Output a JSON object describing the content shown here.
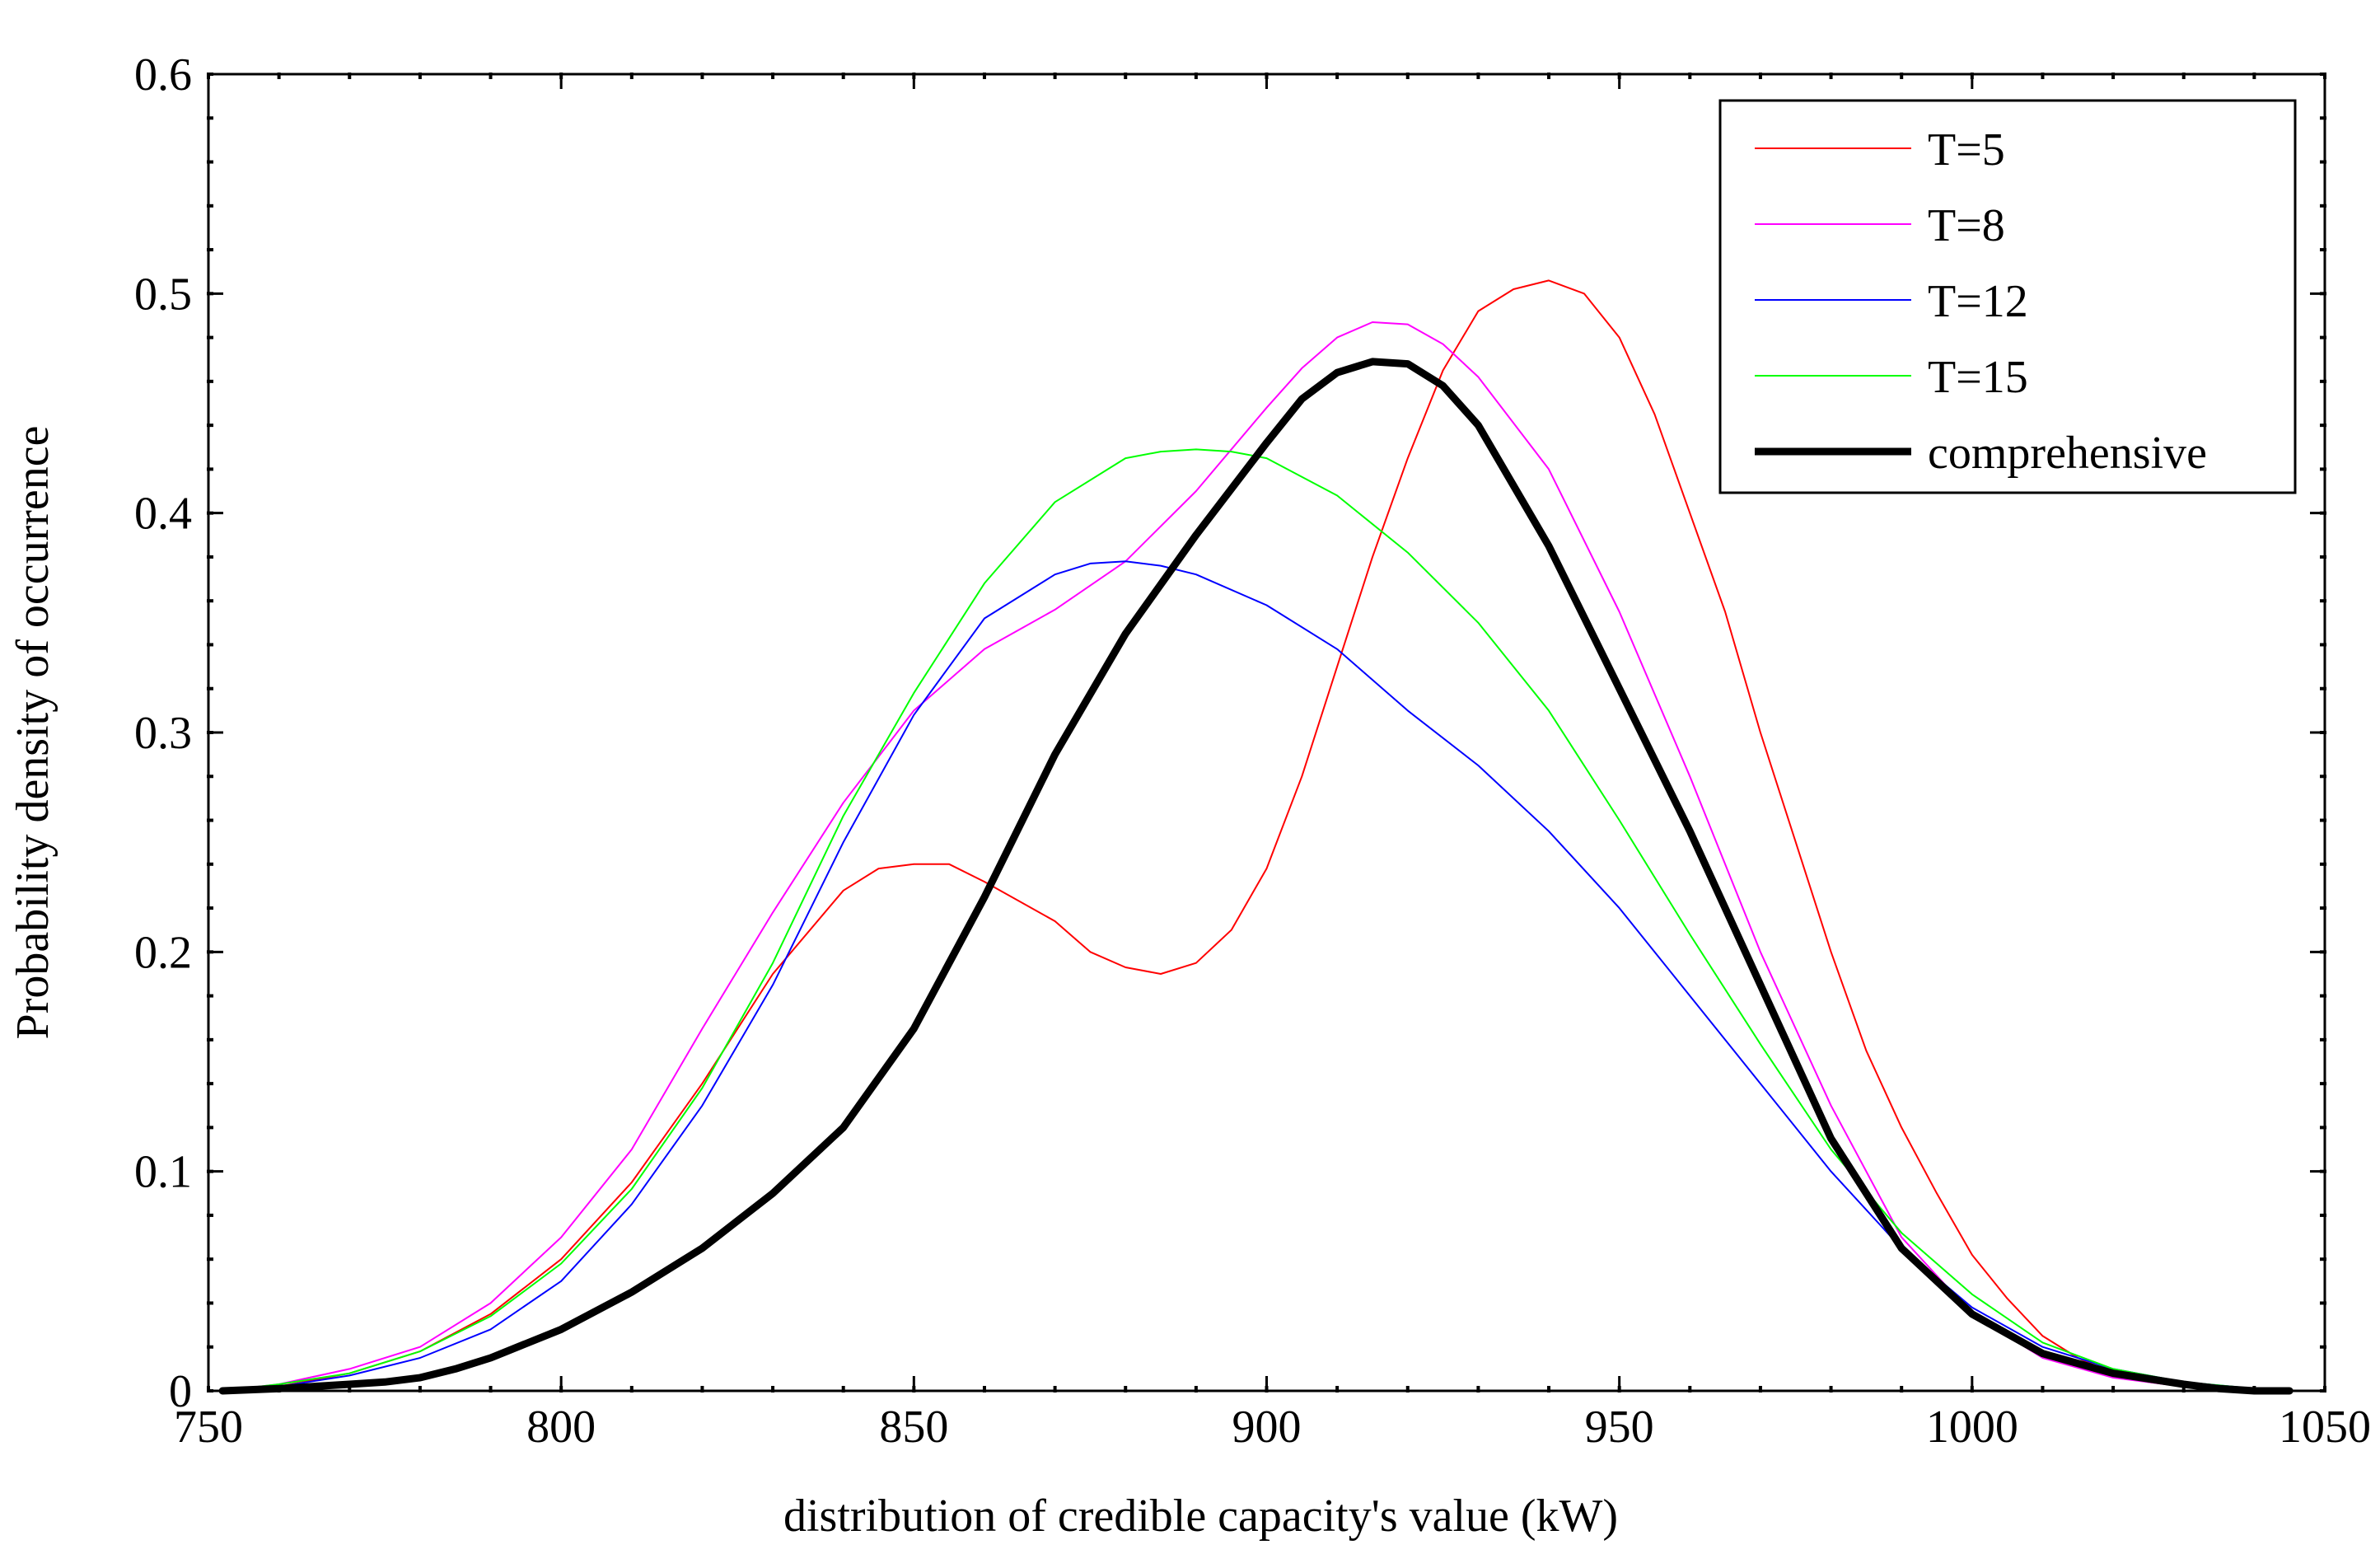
{
  "chart_data": {
    "type": "line",
    "title": "",
    "xlabel": "distribution of credible capacity's value  (kW)",
    "ylabel": "Probability density of occurrence",
    "xlim": [
      750,
      1050
    ],
    "ylim": [
      0,
      0.6
    ],
    "xticks": [
      "750",
      "800",
      "850",
      "900",
      "950",
      "1000",
      "1050"
    ],
    "yticks": [
      "0",
      "0.1",
      "0.2",
      "0.3",
      "0.4",
      "0.5",
      "0.6"
    ],
    "legend_position": "top-right",
    "series": [
      {
        "name": "T=5",
        "color": "#ff0000",
        "width": "thin",
        "x": [
          752,
          760,
          770,
          780,
          790,
          800,
          810,
          820,
          830,
          840,
          845,
          850,
          855,
          860,
          870,
          875,
          880,
          885,
          890,
          895,
          900,
          905,
          910,
          915,
          920,
          925,
          930,
          935,
          940,
          945,
          950,
          955,
          960,
          965,
          970,
          975,
          980,
          985,
          990,
          995,
          1000,
          1005,
          1010,
          1015,
          1020,
          1025,
          1030,
          1035,
          1040,
          1045
        ],
        "y": [
          0,
          0.002,
          0.008,
          0.018,
          0.035,
          0.06,
          0.095,
          0.14,
          0.19,
          0.228,
          0.238,
          0.24,
          0.24,
          0.232,
          0.214,
          0.2,
          0.193,
          0.19,
          0.195,
          0.21,
          0.238,
          0.28,
          0.33,
          0.38,
          0.425,
          0.465,
          0.492,
          0.502,
          0.506,
          0.5,
          0.48,
          0.445,
          0.4,
          0.355,
          0.3,
          0.25,
          0.2,
          0.155,
          0.12,
          0.09,
          0.062,
          0.042,
          0.025,
          0.015,
          0.008,
          0.004,
          0.002,
          0.001,
          0,
          0
        ]
      },
      {
        "name": "T=8",
        "color": "#ff00ff",
        "width": "thin",
        "x": [
          752,
          760,
          770,
          780,
          790,
          800,
          810,
          820,
          830,
          840,
          850,
          860,
          870,
          880,
          890,
          900,
          905,
          910,
          915,
          920,
          925,
          930,
          940,
          950,
          960,
          970,
          980,
          990,
          1000,
          1010,
          1020,
          1030,
          1040,
          1045
        ],
        "y": [
          0,
          0.003,
          0.01,
          0.02,
          0.04,
          0.07,
          0.11,
          0.165,
          0.218,
          0.268,
          0.31,
          0.338,
          0.356,
          0.378,
          0.41,
          0.448,
          0.466,
          0.48,
          0.487,
          0.486,
          0.477,
          0.462,
          0.42,
          0.355,
          0.28,
          0.2,
          0.13,
          0.07,
          0.035,
          0.015,
          0.006,
          0.002,
          0,
          0
        ]
      },
      {
        "name": "T=12",
        "color": "#0000ff",
        "width": "thin",
        "x": [
          752,
          760,
          770,
          780,
          790,
          800,
          810,
          820,
          830,
          840,
          850,
          860,
          870,
          875,
          880,
          885,
          890,
          900,
          910,
          920,
          930,
          940,
          950,
          960,
          970,
          980,
          990,
          1000,
          1010,
          1020,
          1030,
          1040,
          1045
        ],
        "y": [
          0,
          0.002,
          0.007,
          0.015,
          0.028,
          0.05,
          0.085,
          0.13,
          0.185,
          0.25,
          0.308,
          0.352,
          0.372,
          0.377,
          0.378,
          0.376,
          0.372,
          0.358,
          0.338,
          0.31,
          0.285,
          0.255,
          0.22,
          0.18,
          0.14,
          0.1,
          0.065,
          0.038,
          0.02,
          0.01,
          0.004,
          0.001,
          0
        ]
      },
      {
        "name": "T=15",
        "color": "#00ff00",
        "width": "thin",
        "x": [
          752,
          760,
          770,
          780,
          790,
          800,
          810,
          820,
          830,
          840,
          850,
          860,
          870,
          880,
          885,
          890,
          895,
          900,
          910,
          920,
          930,
          940,
          950,
          960,
          970,
          980,
          990,
          1000,
          1010,
          1020,
          1030,
          1040,
          1045
        ],
        "y": [
          0,
          0.003,
          0.008,
          0.018,
          0.034,
          0.058,
          0.092,
          0.138,
          0.195,
          0.262,
          0.318,
          0.368,
          0.405,
          0.425,
          0.428,
          0.429,
          0.428,
          0.425,
          0.408,
          0.382,
          0.35,
          0.31,
          0.26,
          0.208,
          0.158,
          0.11,
          0.072,
          0.044,
          0.022,
          0.01,
          0.004,
          0.001,
          0
        ]
      },
      {
        "name": "comprehensive",
        "color": "#000000",
        "width": "thick",
        "x": [
          752,
          760,
          770,
          775,
          780,
          785,
          790,
          800,
          810,
          820,
          830,
          840,
          850,
          860,
          870,
          880,
          890,
          900,
          905,
          910,
          915,
          920,
          925,
          930,
          940,
          950,
          960,
          970,
          980,
          990,
          1000,
          1010,
          1020,
          1030,
          1035,
          1040,
          1045
        ],
        "y": [
          0,
          0.001,
          0.003,
          0.004,
          0.006,
          0.01,
          0.015,
          0.028,
          0.045,
          0.065,
          0.09,
          0.12,
          0.165,
          0.225,
          0.29,
          0.345,
          0.39,
          0.432,
          0.452,
          0.464,
          0.469,
          0.468,
          0.458,
          0.44,
          0.385,
          0.32,
          0.255,
          0.185,
          0.115,
          0.065,
          0.035,
          0.017,
          0.008,
          0.003,
          0.001,
          0,
          0
        ]
      }
    ]
  }
}
